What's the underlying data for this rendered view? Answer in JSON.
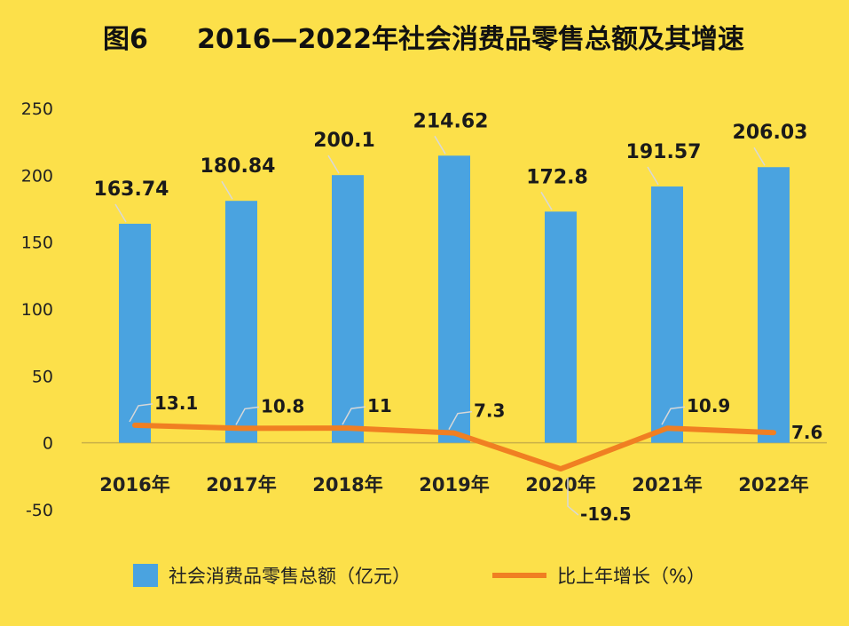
{
  "title_prefix": "图6",
  "title_main": "2016—2022年社会消费品零售总额及其增速",
  "chart_data": {
    "type": "bar",
    "categories": [
      "2016年",
      "2017年",
      "2018年",
      "2019年",
      "2020年",
      "2021年",
      "2022年"
    ],
    "series": [
      {
        "name": "社会消费品零售总额（亿元）",
        "type": "bar",
        "color": "#4AA3E0",
        "values": [
          163.74,
          180.84,
          200.1,
          214.62,
          172.8,
          191.57,
          206.03
        ],
        "labels": [
          "163.74",
          "180.84",
          "200.1",
          "214.62",
          "172.8",
          "191.57",
          "206.03"
        ]
      },
      {
        "name": "比上年增长（%）",
        "type": "line",
        "color": "#F07F22",
        "values": [
          13.1,
          10.8,
          11,
          7.3,
          -19.5,
          10.9,
          7.6
        ],
        "labels": [
          "13.1",
          "10.8",
          "11",
          "7.3",
          "-19.5",
          "10.9",
          "7.6"
        ]
      }
    ],
    "ylim": [
      -50,
      250
    ],
    "yticks": [
      -50,
      0,
      50,
      100,
      150,
      200,
      250
    ],
    "grid": false,
    "legend": "bottom"
  }
}
